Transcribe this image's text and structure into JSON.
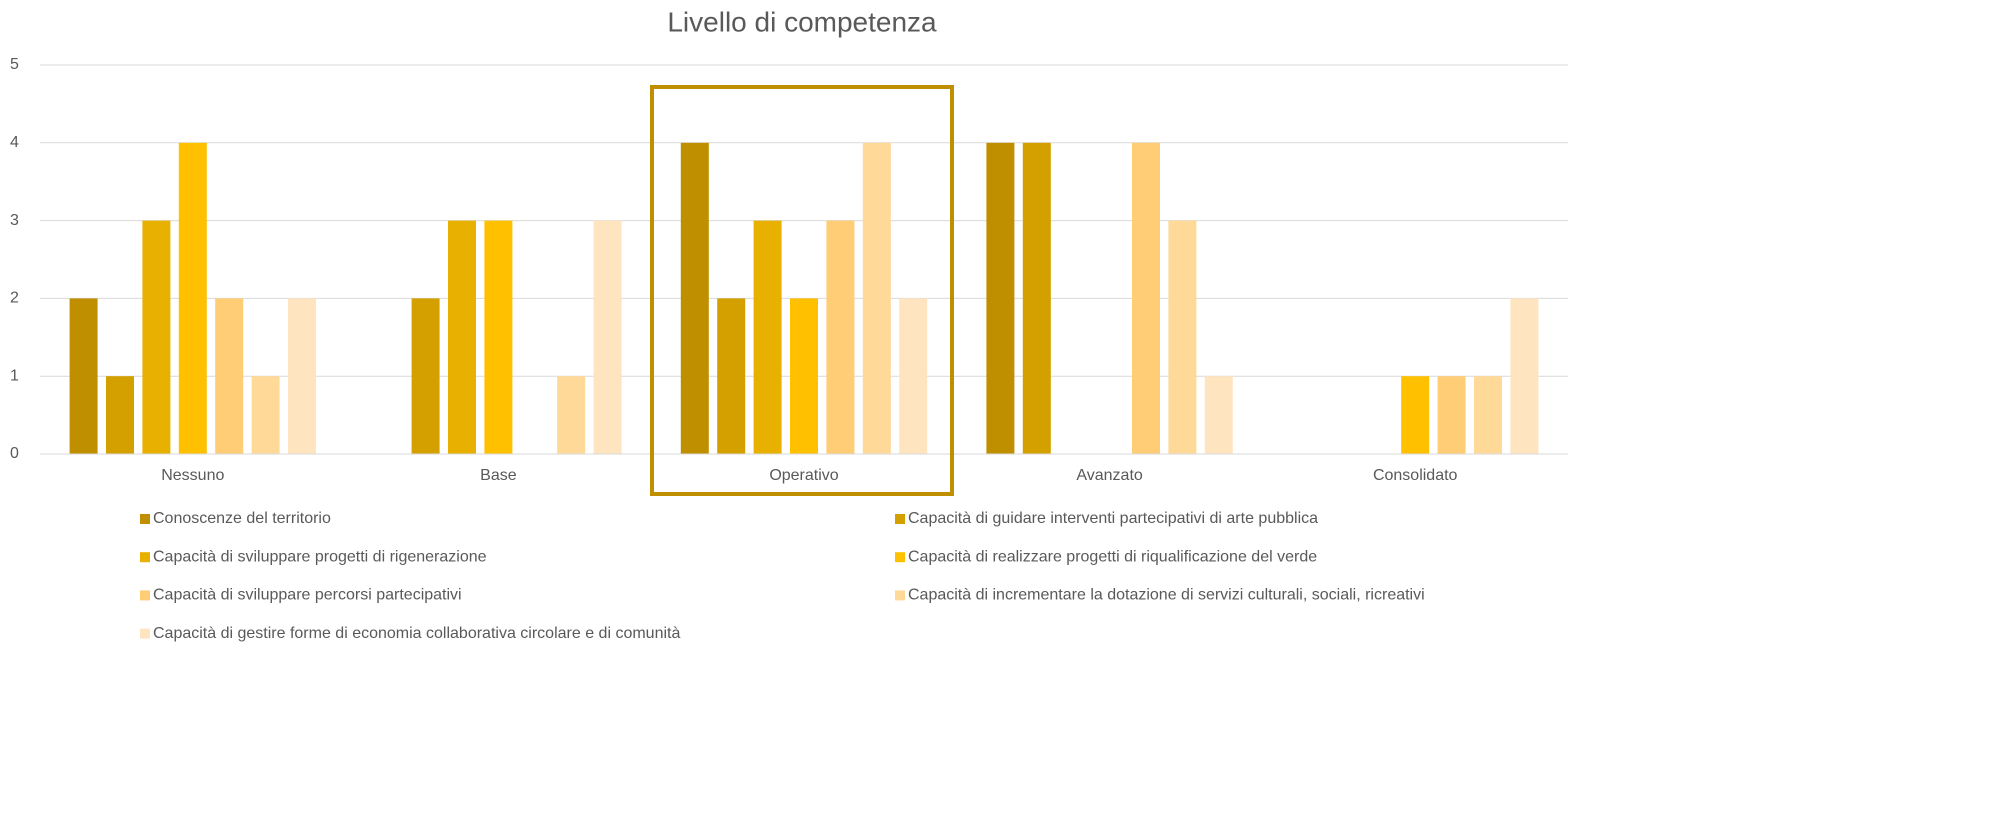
{
  "chart_data": {
    "type": "bar",
    "title": "Livello di competenza",
    "categories": [
      "Nessuno",
      "Base",
      "Operativo",
      "Avanzato",
      "Consolidato"
    ],
    "series": [
      {
        "name": "Conoscenze del territorio",
        "color": "#bf8f00",
        "values": [
          2,
          0,
          4,
          4,
          0
        ]
      },
      {
        "name": "Capacità di guidare interventi partecipativi di arte pubblica",
        "color": "#d4a000",
        "values": [
          1,
          2,
          2,
          4,
          0
        ]
      },
      {
        "name": "Capacità di sviluppare progetti di rigenerazione",
        "color": "#e8b000",
        "values": [
          3,
          3,
          3,
          0,
          0
        ]
      },
      {
        "name": "Capacità di realizzare progetti di riqualificazione del verde",
        "color": "#ffc000",
        "values": [
          4,
          3,
          2,
          0,
          1
        ]
      },
      {
        "name": "Capacità di sviluppare percorsi partecipativi",
        "color": "#ffcd75",
        "values": [
          2,
          0,
          3,
          4,
          1
        ]
      },
      {
        "name": "Capacità di incrementare la dotazione di servizi culturali, sociali, ricreativi",
        "color": "#ffd998",
        "values": [
          1,
          1,
          4,
          3,
          1
        ]
      },
      {
        "name": "Capacità di gestire forme di economia collaborativa circolare e di comunità",
        "color": "#ffe4c0",
        "values": [
          2,
          3,
          2,
          1,
          2
        ]
      }
    ],
    "ylim": [
      0,
      5
    ],
    "yticks": [
      0,
      1,
      2,
      3,
      4,
      5
    ],
    "grid": true
  }
}
